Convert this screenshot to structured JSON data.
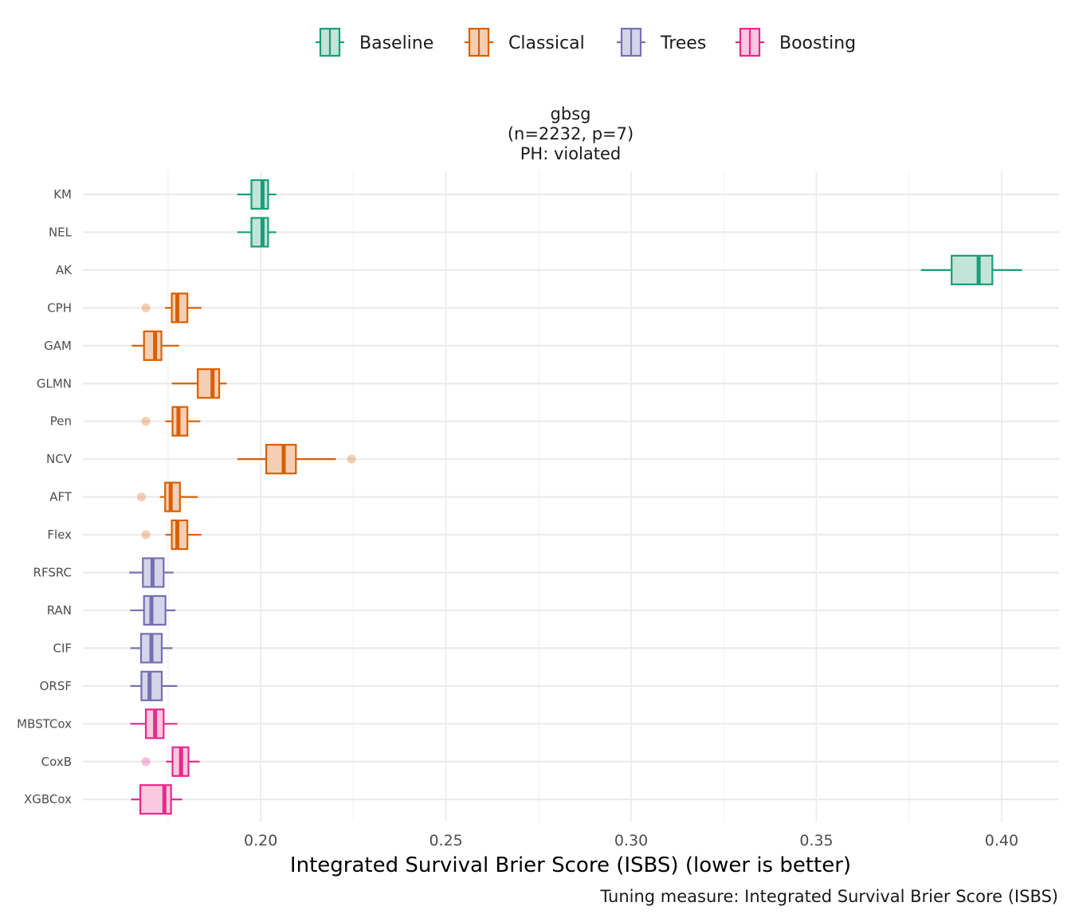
{
  "chart_data": {
    "type": "boxplot",
    "title_lines": [
      "gbsg",
      "(n=2232, p=7)",
      "PH: violated"
    ],
    "xlabel": "Integrated Survival Brier Score (ISBS) (lower is better)",
    "caption": "Tuning measure: Integrated Survival Brier Score (ISBS)",
    "xlim": [
      0.152,
      0.4155
    ],
    "xticks": [
      "0.20",
      "0.25",
      "0.30",
      "0.35",
      "0.40"
    ],
    "grid": true,
    "legend_position": "top",
    "groups": [
      {
        "name": "Baseline",
        "color": "#1b9e77",
        "fill": "#c2e4d9"
      },
      {
        "name": "Classical",
        "color": "#d95f02",
        "fill": "#f5cfb3"
      },
      {
        "name": "Trees",
        "color": "#7570b3",
        "fill": "#d6d4e8"
      },
      {
        "name": "Boosting",
        "color": "#e7298a",
        "fill": "#f8c9e0"
      }
    ],
    "models": [
      {
        "label": "KM",
        "group": "Baseline",
        "whisker_low": 0.1937,
        "q1": 0.1975,
        "median": 0.2005,
        "q3": 0.202,
        "whisker_high": 0.2042,
        "outliers": []
      },
      {
        "label": "NEL",
        "group": "Baseline",
        "whisker_low": 0.1937,
        "q1": 0.1975,
        "median": 0.2005,
        "q3": 0.202,
        "whisker_high": 0.2042,
        "outliers": []
      },
      {
        "label": "AK",
        "group": "Baseline",
        "whisker_low": 0.3782,
        "q1": 0.3865,
        "median": 0.3938,
        "q3": 0.3975,
        "whisker_high": 0.4055,
        "outliers": []
      },
      {
        "label": "CPH",
        "group": "Classical",
        "whisker_low": 0.1742,
        "q1": 0.176,
        "median": 0.1775,
        "q3": 0.1802,
        "whisker_high": 0.184,
        "outliers": [
          0.169
        ]
      },
      {
        "label": "GAM",
        "group": "Classical",
        "whisker_low": 0.1652,
        "q1": 0.1685,
        "median": 0.1715,
        "q3": 0.1732,
        "whisker_high": 0.178,
        "outliers": []
      },
      {
        "label": "GLMN",
        "group": "Classical",
        "whisker_low": 0.176,
        "q1": 0.183,
        "median": 0.187,
        "q3": 0.1888,
        "whisker_high": 0.1908,
        "outliers": []
      },
      {
        "label": "Pen",
        "group": "Classical",
        "whisker_low": 0.1743,
        "q1": 0.1762,
        "median": 0.1778,
        "q3": 0.1802,
        "whisker_high": 0.1837,
        "outliers": [
          0.169
        ]
      },
      {
        "label": "NCV",
        "group": "Classical",
        "whisker_low": 0.1937,
        "q1": 0.2015,
        "median": 0.2062,
        "q3": 0.2095,
        "whisker_high": 0.2203,
        "outliers": [
          0.2245
        ]
      },
      {
        "label": "AFT",
        "group": "Classical",
        "whisker_low": 0.1728,
        "q1": 0.1742,
        "median": 0.1757,
        "q3": 0.1782,
        "whisker_high": 0.183,
        "outliers": [
          0.1678
        ]
      },
      {
        "label": "Flex",
        "group": "Classical",
        "whisker_low": 0.1743,
        "q1": 0.176,
        "median": 0.1775,
        "q3": 0.1802,
        "whisker_high": 0.184,
        "outliers": [
          0.169
        ]
      },
      {
        "label": "RFSRC",
        "group": "Trees",
        "whisker_low": 0.1645,
        "q1": 0.1682,
        "median": 0.1708,
        "q3": 0.1738,
        "whisker_high": 0.1765,
        "outliers": []
      },
      {
        "label": "RAN",
        "group": "Trees",
        "whisker_low": 0.1648,
        "q1": 0.1685,
        "median": 0.1705,
        "q3": 0.1743,
        "whisker_high": 0.177,
        "outliers": []
      },
      {
        "label": "CIF",
        "group": "Trees",
        "whisker_low": 0.1648,
        "q1": 0.1677,
        "median": 0.1705,
        "q3": 0.1733,
        "whisker_high": 0.1762,
        "outliers": []
      },
      {
        "label": "ORSF",
        "group": "Trees",
        "whisker_low": 0.1648,
        "q1": 0.1678,
        "median": 0.17,
        "q3": 0.1733,
        "whisker_high": 0.1775,
        "outliers": []
      },
      {
        "label": "MBSTCox",
        "group": "Boosting",
        "whisker_low": 0.1648,
        "q1": 0.169,
        "median": 0.1715,
        "q3": 0.1738,
        "whisker_high": 0.1775,
        "outliers": []
      },
      {
        "label": "CoxB",
        "group": "Boosting",
        "whisker_low": 0.1745,
        "q1": 0.1762,
        "median": 0.1785,
        "q3": 0.1805,
        "whisker_high": 0.1835,
        "outliers": [
          0.169
        ]
      },
      {
        "label": "XGBCox",
        "group": "Boosting",
        "whisker_low": 0.165,
        "q1": 0.1675,
        "median": 0.174,
        "q3": 0.1758,
        "whisker_high": 0.1788,
        "outliers": []
      }
    ]
  }
}
